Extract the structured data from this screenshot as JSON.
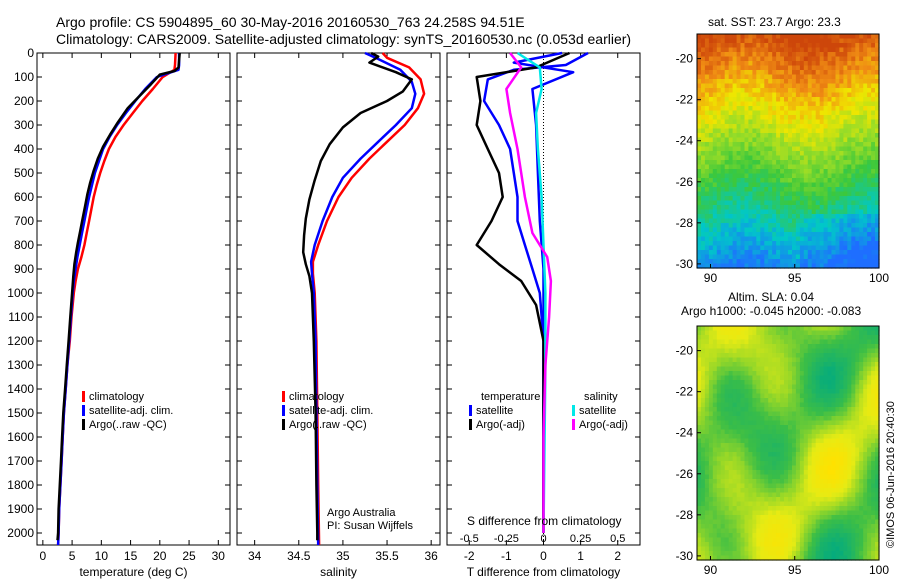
{
  "header": {
    "title_line1": "Argo profile: CS 5904895_60 30-May-2016 20160530_763 24.258S 94.51E",
    "title_line2": "Climatology: CARS2009. Satellite-adjusted climatology: synTS_20160530.nc (0.053d earlier)"
  },
  "colors": {
    "climatology": "#ff0000",
    "satellite_adj": "#0000ff",
    "argo": "#000000",
    "satellite_s": "#00e8e8",
    "argo_adj_s": "#ff00ff"
  },
  "chart_data": [
    {
      "type": "line",
      "id": "temperature",
      "xlabel": "temperature (deg C)",
      "ylim": [
        2050,
        0
      ],
      "xlim": [
        -1,
        32
      ],
      "xticks": [
        0,
        5,
        10,
        15,
        20,
        25,
        30
      ],
      "yticks": [
        0,
        100,
        200,
        300,
        400,
        500,
        600,
        700,
        800,
        900,
        1000,
        1100,
        1200,
        1300,
        1400,
        1500,
        1600,
        1700,
        1800,
        1900,
        2000
      ],
      "legend": [
        "climatology",
        "satellite-adj. clim.",
        "Argo(..raw -QC)"
      ],
      "series": [
        {
          "name": "climatology",
          "points": [
            [
              22.7,
              0
            ],
            [
              22.6,
              50
            ],
            [
              22.5,
              70
            ],
            [
              20.5,
              100
            ],
            [
              18.8,
              150
            ],
            [
              17,
              200
            ],
            [
              15.4,
              250
            ],
            [
              13.8,
              300
            ],
            [
              12.4,
              350
            ],
            [
              11.3,
              400
            ],
            [
              10.5,
              450
            ],
            [
              9.8,
              500
            ],
            [
              9.2,
              550
            ],
            [
              8.7,
              600
            ],
            [
              8.3,
              650
            ],
            [
              7.9,
              700
            ],
            [
              7.5,
              750
            ],
            [
              7.1,
              800
            ],
            [
              6.6,
              850
            ],
            [
              6.0,
              900
            ],
            [
              5.6,
              950
            ],
            [
              5.3,
              1000
            ],
            [
              4.9,
              1100
            ],
            [
              4.6,
              1200
            ],
            [
              4.2,
              1300
            ],
            [
              3.9,
              1400
            ],
            [
              3.6,
              1500
            ],
            [
              3.4,
              1600
            ],
            [
              3.2,
              1700
            ],
            [
              3.0,
              1800
            ],
            [
              2.8,
              1900
            ],
            [
              2.7,
              2000
            ],
            [
              2.6,
              2050
            ]
          ]
        },
        {
          "name": "satellite-adj. clim.",
          "points": [
            [
              23.3,
              0
            ],
            [
              23.3,
              50
            ],
            [
              23.2,
              70
            ],
            [
              19.5,
              100
            ],
            [
              17.5,
              150
            ],
            [
              15.8,
              200
            ],
            [
              14.2,
              250
            ],
            [
              12.7,
              300
            ],
            [
              11.4,
              350
            ],
            [
              10.3,
              400
            ],
            [
              9.6,
              450
            ],
            [
              8.9,
              500
            ],
            [
              8.4,
              550
            ],
            [
              7.9,
              600
            ],
            [
              7.5,
              650
            ],
            [
              7.1,
              700
            ],
            [
              6.7,
              750
            ],
            [
              6.3,
              800
            ],
            [
              5.9,
              850
            ],
            [
              5.6,
              900
            ],
            [
              5.3,
              950
            ],
            [
              5.1,
              1000
            ],
            [
              4.8,
              1100
            ],
            [
              4.5,
              1200
            ],
            [
              4.2,
              1300
            ],
            [
              3.9,
              1400
            ],
            [
              3.6,
              1500
            ],
            [
              3.4,
              1600
            ],
            [
              3.2,
              1700
            ],
            [
              3.0,
              1800
            ],
            [
              2.8,
              1900
            ],
            [
              2.7,
              2000
            ],
            [
              2.6,
              2050
            ]
          ]
        },
        {
          "name": "Argo(..raw -QC)",
          "points": [
            [
              23.4,
              0
            ],
            [
              23.3,
              30
            ],
            [
              23.2,
              60
            ],
            [
              22.5,
              75
            ],
            [
              20,
              90
            ],
            [
              18.5,
              130
            ],
            [
              16.5,
              180
            ],
            [
              14.5,
              230
            ],
            [
              12.8,
              290
            ],
            [
              11.5,
              340
            ],
            [
              10.3,
              390
            ],
            [
              9.4,
              440
            ],
            [
              8.7,
              490
            ],
            [
              8.1,
              540
            ],
            [
              7.6,
              590
            ],
            [
              7.2,
              640
            ],
            [
              6.8,
              690
            ],
            [
              6.4,
              740
            ],
            [
              6.0,
              790
            ],
            [
              5.7,
              830
            ],
            [
              5.4,
              880
            ],
            [
              5.2,
              930
            ],
            [
              5.0,
              1000
            ],
            [
              4.7,
              1100
            ],
            [
              4.4,
              1200
            ],
            [
              4.1,
              1300
            ],
            [
              3.8,
              1400
            ],
            [
              3.5,
              1500
            ],
            [
              3.3,
              1600
            ],
            [
              3.1,
              1700
            ],
            [
              2.9,
              1800
            ],
            [
              2.7,
              1900
            ],
            [
              2.6,
              2000
            ],
            [
              2.5,
              2030
            ]
          ]
        }
      ]
    },
    {
      "type": "line",
      "id": "salinity",
      "xlabel": "salinity",
      "ylim": [
        2050,
        0
      ],
      "xlim": [
        33.8,
        36.1
      ],
      "xticks": [
        34,
        34.5,
        35,
        35.5,
        36
      ],
      "legend": [
        "climatology",
        "satellite-adj. clim.",
        "Argo(..raw -QC)"
      ],
      "annotation": [
        "Argo Australia",
        "PI: Susan Wijffels"
      ],
      "series": [
        {
          "name": "climatology",
          "points": [
            [
              35.45,
              0
            ],
            [
              35.5,
              20
            ],
            [
              35.75,
              60
            ],
            [
              35.88,
              110
            ],
            [
              35.92,
              170
            ],
            [
              35.85,
              230
            ],
            [
              35.7,
              300
            ],
            [
              35.5,
              370
            ],
            [
              35.3,
              440
            ],
            [
              35.1,
              520
            ],
            [
              34.95,
              600
            ],
            [
              34.82,
              700
            ],
            [
              34.72,
              800
            ],
            [
              34.66,
              870
            ],
            [
              34.66,
              920
            ],
            [
              34.68,
              1000
            ],
            [
              34.7,
              1200
            ],
            [
              34.71,
              1500
            ],
            [
              34.72,
              1800
            ],
            [
              34.73,
              2050
            ]
          ]
        },
        {
          "name": "satellite-adj. clim.",
          "points": [
            [
              35.25,
              0
            ],
            [
              35.4,
              25
            ],
            [
              35.65,
              70
            ],
            [
              35.78,
              120
            ],
            [
              35.82,
              170
            ],
            [
              35.78,
              230
            ],
            [
              35.6,
              300
            ],
            [
              35.4,
              370
            ],
            [
              35.2,
              440
            ],
            [
              35.0,
              520
            ],
            [
              34.88,
              600
            ],
            [
              34.77,
              700
            ],
            [
              34.68,
              800
            ],
            [
              34.64,
              870
            ],
            [
              34.65,
              920
            ],
            [
              34.67,
              1000
            ],
            [
              34.69,
              1200
            ],
            [
              34.7,
              1500
            ],
            [
              34.71,
              1800
            ],
            [
              34.72,
              2050
            ]
          ]
        },
        {
          "name": "Argo(..raw -QC)",
          "points": [
            [
              35.32,
              0
            ],
            [
              35.4,
              15
            ],
            [
              35.3,
              40
            ],
            [
              35.6,
              80
            ],
            [
              35.78,
              110
            ],
            [
              35.68,
              160
            ],
            [
              35.5,
              200
            ],
            [
              35.2,
              250
            ],
            [
              35.0,
              310
            ],
            [
              34.85,
              380
            ],
            [
              34.75,
              450
            ],
            [
              34.68,
              530
            ],
            [
              34.62,
              610
            ],
            [
              34.58,
              690
            ],
            [
              34.56,
              760
            ],
            [
              34.55,
              830
            ],
            [
              34.58,
              880
            ],
            [
              34.62,
              930
            ],
            [
              34.65,
              1000
            ],
            [
              34.67,
              1200
            ],
            [
              34.69,
              1500
            ],
            [
              34.7,
              1800
            ],
            [
              34.71,
              2000
            ],
            [
              34.71,
              2030
            ]
          ]
        }
      ]
    },
    {
      "type": "line",
      "id": "difference",
      "xlabel": "T difference from climatology",
      "xlabel_top": "S difference from climatology",
      "ylim": [
        2050,
        0
      ],
      "xlim": [
        -2.6,
        2.6
      ],
      "xticks": [
        -2,
        -1,
        0,
        1,
        2
      ],
      "xticks_s": [
        "-0.5",
        "-0.25",
        "0",
        "0.25",
        "0.5"
      ],
      "legend_temperature": [
        "temperature",
        "satellite",
        "Argo(-adj)"
      ],
      "legend_salinity": [
        "salinity",
        "satellite",
        "Argo(-adj)"
      ],
      "series": [
        {
          "name": "satellite",
          "points": [
            [
              0.5,
              0
            ],
            [
              -0.8,
              40
            ],
            [
              0.8,
              80
            ],
            [
              -0.3,
              150
            ],
            [
              -0.2,
              300
            ],
            [
              -0.15,
              500
            ],
            [
              -0.1,
              700
            ],
            [
              0,
              900
            ],
            [
              0,
              1100
            ],
            [
              0,
              1500
            ],
            [
              0,
              2000
            ]
          ]
        },
        {
          "name": "Argo(-adj)",
          "points": [
            [
              1.2,
              0
            ],
            [
              0.6,
              50
            ],
            [
              -0.8,
              70
            ],
            [
              -1.5,
              110
            ],
            [
              -1.6,
              200
            ],
            [
              -1.2,
              300
            ],
            [
              -0.9,
              400
            ],
            [
              -0.8,
              500
            ],
            [
              -0.7,
              600
            ],
            [
              -0.7,
              700
            ],
            [
              -0.5,
              800
            ],
            [
              -0.3,
              900
            ],
            [
              -0.1,
              1000
            ],
            [
              0,
              1200
            ],
            [
              0,
              1500
            ],
            [
              0,
              2000
            ]
          ]
        },
        {
          "name": "Argo",
          "points": [
            [
              0.7,
              0
            ],
            [
              -0.2,
              60
            ],
            [
              -1.8,
              100
            ],
            [
              -1.7,
              200
            ],
            [
              -1.8,
              300
            ],
            [
              -1.5,
              400
            ],
            [
              -1.2,
              500
            ],
            [
              -1.1,
              600
            ],
            [
              -1.4,
              700
            ],
            [
              -1.8,
              800
            ],
            [
              -1.2,
              880
            ],
            [
              -0.6,
              950
            ],
            [
              -0.2,
              1050
            ],
            [
              0,
              1200
            ],
            [
              0,
              1500
            ],
            [
              0,
              2000
            ]
          ]
        },
        {
          "name": "salinity satellite",
          "points": [
            [
              -0.7,
              0
            ],
            [
              -0.1,
              60
            ],
            [
              -0.05,
              150
            ],
            [
              -0.2,
              250
            ],
            [
              -0.15,
              400
            ],
            [
              -0.05,
              600
            ],
            [
              0,
              800
            ],
            [
              0.05,
              1000
            ],
            [
              0.05,
              1300
            ],
            [
              0.03,
              1600
            ],
            [
              0,
              2000
            ]
          ]
        },
        {
          "name": "salinity Argo(-adj)",
          "points": [
            [
              -0.9,
              0
            ],
            [
              -0.6,
              60
            ],
            [
              -1.0,
              150
            ],
            [
              -0.9,
              250
            ],
            [
              -0.7,
              400
            ],
            [
              -0.5,
              600
            ],
            [
              -0.3,
              750
            ],
            [
              0.1,
              850
            ],
            [
              0.2,
              950
            ],
            [
              0.15,
              1100
            ],
            [
              0.05,
              1300
            ],
            [
              0,
              1600
            ],
            [
              0,
              2000
            ]
          ]
        }
      ]
    },
    {
      "type": "heatmap",
      "id": "sst_map",
      "title": "sat. SST: 23.7  Argo: 23.3",
      "xticks": [
        90,
        95,
        100
      ],
      "yticks": [
        -20,
        -22,
        -24,
        -26,
        -28,
        -30
      ]
    },
    {
      "type": "heatmap",
      "id": "sla_map",
      "title_line1": "Altim. SLA: 0.04",
      "title_line2": "Argo h1000: -0.045 h2000: -0.083",
      "xticks": [
        90,
        95,
        100
      ],
      "yticks": [
        -20,
        -22,
        -24,
        -26,
        -28,
        -30
      ]
    }
  ],
  "footer": {
    "stamp": "©IMOS 06-Jun-2016 20:40:30"
  }
}
